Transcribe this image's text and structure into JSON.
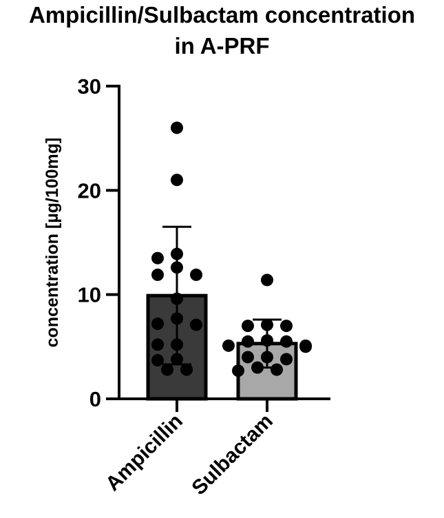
{
  "chart_data": {
    "type": "bar",
    "title_lines": [
      "Ampicillin/Sulbactam concentration",
      "in A-PRF"
    ],
    "ylabel": "concentration [µg/100mg]",
    "xlabel": "",
    "ylim": [
      0,
      30
    ],
    "yticks": [
      0,
      10,
      20,
      30
    ],
    "grid": false,
    "categories": [
      "Ampicillin",
      "Sulbactam"
    ],
    "values": [
      9.9,
      5.3
    ],
    "error": [
      6.6,
      2.3
    ],
    "bar_colors": [
      "#3a3a3a",
      "#a8a8a8"
    ],
    "points": [
      [
        26.0,
        21.0,
        13.9,
        13.5,
        12.6,
        11.9,
        11.9,
        9.6,
        7.7,
        7.2,
        7.1,
        5.2,
        5.2,
        3.8,
        3.7,
        2.8,
        2.8
      ],
      [
        11.4,
        7.1,
        7.0,
        7.0,
        5.6,
        5.5,
        5.5,
        5.1,
        5.1,
        5.0,
        4.0,
        4.0,
        3.8,
        3.0,
        2.8,
        2.7
      ]
    ]
  }
}
